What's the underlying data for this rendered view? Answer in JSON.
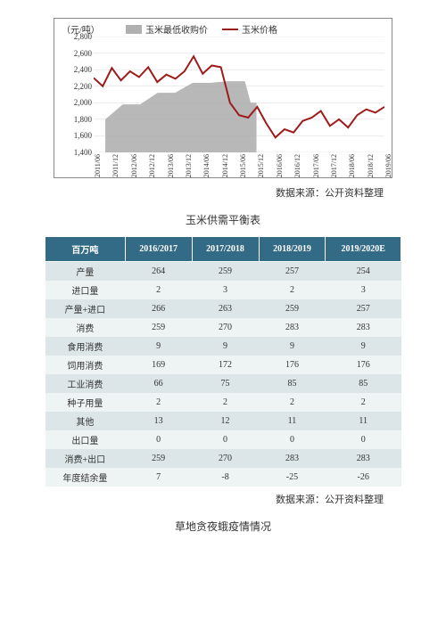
{
  "chart": {
    "type": "line+area",
    "y_axis_title": "（元/吨）",
    "legend": [
      {
        "label": "玉米最低收购价",
        "color": "#b0b0b0",
        "kind": "area"
      },
      {
        "label": "玉米价格",
        "color": "#9e1b1b",
        "kind": "line"
      }
    ],
    "ylim": [
      1400,
      2800
    ],
    "ytick_step": 200,
    "yticks": [
      1400,
      1600,
      1800,
      2000,
      2200,
      2400,
      2600,
      2800
    ],
    "x_labels": [
      "2011/06",
      "2011/12",
      "2012/06",
      "2012/12",
      "2013/06",
      "2013/12",
      "2014/06",
      "2014/12",
      "2015/06",
      "2015/12",
      "2016/06",
      "2016/12",
      "2017/06",
      "2017/12",
      "2018/06",
      "2018/12",
      "2019/06"
    ],
    "grid_color": "#d9d9d9",
    "background_color": "#ffffff",
    "line_width": 2,
    "price_series": {
      "color": "#9e1b1b",
      "values": [
        2300,
        2200,
        2420,
        2270,
        2380,
        2310,
        2430,
        2250,
        2340,
        2290,
        2380,
        2560,
        2350,
        2450,
        2430,
        2000,
        1850,
        1820,
        1950,
        1750,
        1580,
        1680,
        1640,
        1780,
        1820,
        1900,
        1720,
        1800,
        1700,
        1850,
        1920,
        1880,
        1950
      ]
    },
    "min_price_series": {
      "color": "#b0b0b0",
      "points": [
        {
          "x": 0.04,
          "y": 1800
        },
        {
          "x": 0.1,
          "y": 1980
        },
        {
          "x": 0.16,
          "y": 1980
        },
        {
          "x": 0.22,
          "y": 2120
        },
        {
          "x": 0.28,
          "y": 2120
        },
        {
          "x": 0.34,
          "y": 2240
        },
        {
          "x": 0.4,
          "y": 2240
        },
        {
          "x": 0.46,
          "y": 2260
        },
        {
          "x": 0.52,
          "y": 2260
        },
        {
          "x": 0.54,
          "y": 2000
        },
        {
          "x": 0.56,
          "y": 2000
        },
        {
          "x": 0.56,
          "y": 1400
        }
      ]
    }
  },
  "source_text": "数据来源：公开资料整理",
  "table_title": "玉米供需平衡表",
  "table": {
    "header_bg": "#336b87",
    "row_odd_bg": "#dce6e8",
    "row_even_bg": "#eef3f4",
    "columns": [
      "百万吨",
      "2016/2017",
      "2017/2018",
      "2018/2019",
      "2019/2020E"
    ],
    "rows": [
      [
        "产量",
        "264",
        "259",
        "257",
        "254"
      ],
      [
        "进口量",
        "2",
        "3",
        "2",
        "3"
      ],
      [
        "产量+进口",
        "266",
        "263",
        "259",
        "257"
      ],
      [
        "消费",
        "259",
        "270",
        "283",
        "283"
      ],
      [
        "食用消费",
        "9",
        "9",
        "9",
        "9"
      ],
      [
        "饲用消费",
        "169",
        "172",
        "176",
        "176"
      ],
      [
        "工业消费",
        "66",
        "75",
        "85",
        "85"
      ],
      [
        "种子用量",
        "2",
        "2",
        "2",
        "2"
      ],
      [
        "其他",
        "13",
        "12",
        "11",
        "11"
      ],
      [
        "出口量",
        "0",
        "0",
        "0",
        "0"
      ],
      [
        "消费+出口",
        "259",
        "270",
        "283",
        "283"
      ],
      [
        "年度结余量",
        "7",
        "-8",
        "-25",
        "-26"
      ]
    ]
  },
  "second_heading": "草地贪夜蛾疫情情况"
}
